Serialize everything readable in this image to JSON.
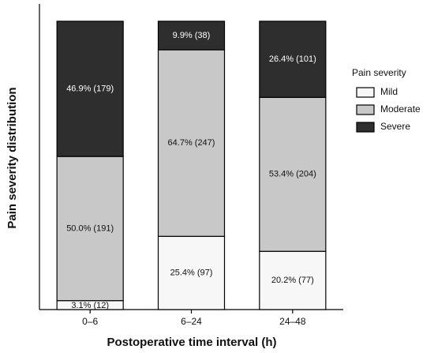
{
  "chart_data": {
    "type": "stacked_bar",
    "x_label": "Postoperative time interval (h)",
    "y_label": "Pain severity distribution",
    "categories": [
      "0–6",
      "6–24",
      "24–48"
    ],
    "ylim": [
      0,
      106
    ],
    "legend_title": "Pain severity",
    "legend": "right",
    "series": [
      {
        "name": "Mild",
        "color": "#f7f7f7",
        "values": [
          3.1,
          25.4,
          20.2
        ],
        "value_labels": [
          "3.1% (12)",
          "25.4% (97)",
          "20.2% (77)"
        ]
      },
      {
        "name": "Moderate",
        "color": "#c8c8c8",
        "values": [
          50.0,
          64.7,
          53.4
        ],
        "value_labels": [
          "50.0% (191)",
          "64.7% (247)",
          "53.4% (204)"
        ]
      },
      {
        "name": "Severe",
        "color": "#2e2e2e",
        "values": [
          46.9,
          9.9,
          26.4
        ],
        "value_labels": [
          "46.9% (179)",
          "9.9% (38)",
          "26.4% (101)"
        ]
      }
    ]
  }
}
